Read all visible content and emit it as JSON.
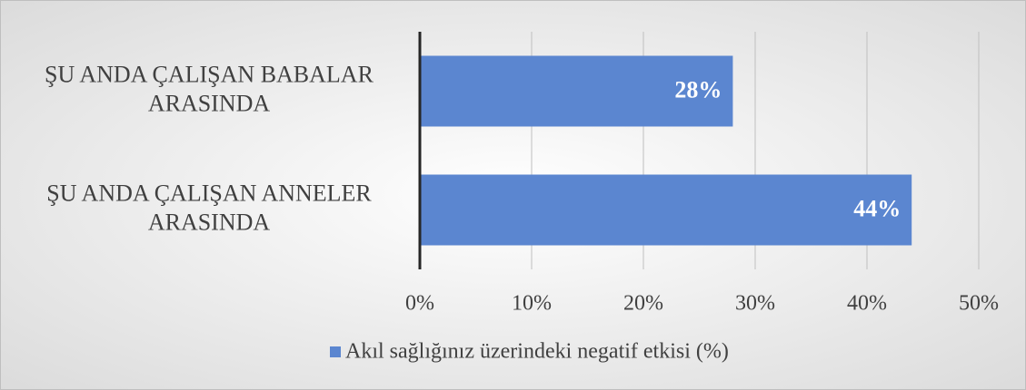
{
  "chart_data": {
    "type": "bar",
    "orientation": "horizontal",
    "categories": [
      "ŞU ANDA ÇALIŞAN BABALAR\nARASINDA",
      "ŞU ANDA ÇALIŞAN ANNELER\nARASINDA"
    ],
    "series": [
      {
        "name": "Akıl sağlığınız üzerindeki negatif etkisi (%)",
        "color": "#5b86d0",
        "values": [
          28,
          44
        ],
        "value_labels": [
          "28%",
          "44%"
        ]
      }
    ],
    "xlim": [
      0,
      50
    ],
    "xticks": [
      {
        "value": 0,
        "label": "0%"
      },
      {
        "value": 10,
        "label": "10%"
      },
      {
        "value": 20,
        "label": "20%"
      },
      {
        "value": 30,
        "label": "30%"
      },
      {
        "value": 40,
        "label": "40%"
      },
      {
        "value": 50,
        "label": "50%"
      }
    ],
    "grid": true,
    "legend": "bottom"
  }
}
